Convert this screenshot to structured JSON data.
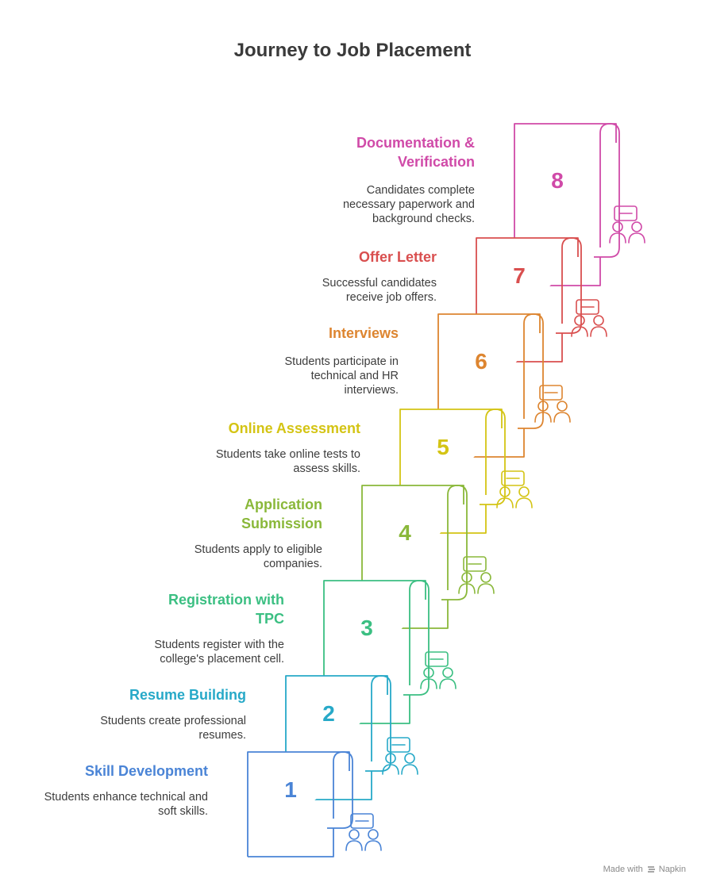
{
  "title": "Journey to Job Placement",
  "footer": {
    "made_with": "Made with",
    "brand": "Napkin"
  },
  "steps": [
    {
      "number": "1",
      "title": "Skill Development",
      "desc": "Students enhance technical and soft skills.",
      "color": "#4a84d6",
      "icon": "coding-discussion-icon"
    },
    {
      "number": "2",
      "title": "Resume Building",
      "desc": "Students create professional resumes.",
      "color": "#27a9c8",
      "icon": "resume-graduate-icon"
    },
    {
      "number": "3",
      "title": "Registration with TPC",
      "desc": "Students register with the college's placement cell.",
      "color": "#3bbf82",
      "icon": "registration-user-icon"
    },
    {
      "number": "4",
      "title": "Application Submission",
      "desc": "Students apply to eligible companies.",
      "color": "#8ab83a",
      "icon": "users-document-icon"
    },
    {
      "number": "5",
      "title": "Online Assessment",
      "desc": "Students take online tests to assess skills.",
      "color": "#d4c414",
      "icon": "users-laptop-icon"
    },
    {
      "number": "6",
      "title": "Interviews",
      "desc": "Students participate in technical and HR interviews.",
      "color": "#dd8530",
      "icon": "interview-icon"
    },
    {
      "number": "7",
      "title": "Offer Letter",
      "desc": "Successful candidates receive job offers.",
      "color": "#d94f4f",
      "icon": "users-mail-icon"
    },
    {
      "number": "8",
      "title": "Documentation & Verification",
      "desc": "Candidates complete necessary paperwork and background checks.",
      "color": "#d04aa8",
      "icon": "documentation-check-icon"
    }
  ]
}
